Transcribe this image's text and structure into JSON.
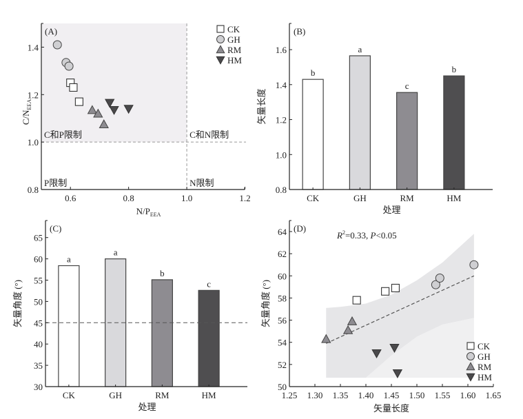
{
  "chart_data": [
    {
      "id": "A",
      "type": "scatter",
      "panel_label": "(A)",
      "xlabel": "N/P",
      "xlabel_sub": "EEA",
      "ylabel": "C/N",
      "ylabel_sub": "EEA",
      "xlim": [
        0.5,
        1.2
      ],
      "ylim": [
        0.8,
        1.5
      ],
      "xticks": [
        0.6,
        0.8,
        1.0,
        1.2
      ],
      "xtick_labels": [
        "0.6",
        "0.8",
        "1.0",
        "1.2"
      ],
      "yticks": [
        0.8,
        1.0,
        1.2,
        1.4
      ],
      "ytick_labels": [
        "0.8",
        "1.0",
        "1.2",
        "1.4"
      ],
      "reference_lines": {
        "x": 1.0,
        "y": 1.0
      },
      "shaded_region": {
        "x": [
          0.5,
          1.0
        ],
        "y": [
          1.0,
          1.5
        ]
      },
      "quadrant_labels": [
        {
          "text": "C和P限制",
          "position": "upper-left"
        },
        {
          "text": "C和N限制",
          "position": "upper-right"
        },
        {
          "text": "P限制",
          "position": "lower-left"
        },
        {
          "text": "N限制",
          "position": "lower-right"
        }
      ],
      "legend_position": "top-right",
      "series": [
        {
          "name": "CK",
          "marker": "square",
          "color": "#ffffff",
          "points": [
            [
              0.6,
              1.25
            ],
            [
              0.61,
              1.23
            ],
            [
              0.63,
              1.17
            ]
          ]
        },
        {
          "name": "GH",
          "marker": "circle",
          "color": "#cfcfd2",
          "points": [
            [
              0.555,
              1.41
            ],
            [
              0.585,
              1.335
            ],
            [
              0.595,
              1.32
            ]
          ]
        },
        {
          "name": "RM",
          "marker": "triangle-up",
          "color": "#8e8c91",
          "points": [
            [
              0.675,
              1.135
            ],
            [
              0.695,
              1.12
            ],
            [
              0.715,
              1.075
            ]
          ]
        },
        {
          "name": "HM",
          "marker": "triangle-down",
          "color": "#4a494b",
          "points": [
            [
              0.735,
              1.165
            ],
            [
              0.75,
              1.135
            ],
            [
              0.8,
              1.14
            ]
          ]
        }
      ]
    },
    {
      "id": "B",
      "type": "bar",
      "panel_label": "(B)",
      "xlabel": "处理",
      "ylabel": "矢量长度",
      "categories": [
        "CK",
        "GH",
        "RM",
        "HM"
      ],
      "values": [
        1.43,
        1.565,
        1.355,
        1.45
      ],
      "significance": [
        "b",
        "a",
        "c",
        "b"
      ],
      "colors": [
        "#ffffff",
        "#d9d9dc",
        "#8e8c91",
        "#4f4e50"
      ],
      "ylim": [
        0.8,
        1.75
      ],
      "yticks": [
        0.8,
        1.0,
        1.2,
        1.4,
        1.6
      ],
      "ytick_labels": [
        "0.8",
        "1.0",
        "1.2",
        "1.4",
        "1.6"
      ]
    },
    {
      "id": "C",
      "type": "bar",
      "panel_label": "(C)",
      "xlabel": "处理",
      "ylabel": "矢量角度 (°)",
      "categories": [
        "CK",
        "GH",
        "RM",
        "HM"
      ],
      "values": [
        58.4,
        60.0,
        55.1,
        52.6
      ],
      "significance": [
        "a",
        "a",
        "b",
        "c"
      ],
      "colors": [
        "#ffffff",
        "#d9d9dc",
        "#8e8c91",
        "#4f4e50"
      ],
      "ylim": [
        30,
        69
      ],
      "yticks": [
        30,
        35,
        40,
        45,
        50,
        55,
        60,
        65
      ],
      "ytick_labels": [
        "30",
        "35",
        "40",
        "45",
        "50",
        "55",
        "60",
        "65"
      ],
      "reference_line_y": 45
    },
    {
      "id": "D",
      "type": "scatter",
      "panel_label": "(D)",
      "xlabel": "矢量长度",
      "ylabel": "矢量角度 (°)",
      "annotation": {
        "r2_label": "R",
        "r2_sup": "2",
        "r2_value": "=0.33, ",
        "p_label": "P",
        "p_value": "<0.05"
      },
      "xlim": [
        1.25,
        1.65
      ],
      "ylim": [
        50,
        65
      ],
      "xticks": [
        1.25,
        1.3,
        1.35,
        1.4,
        1.45,
        1.5,
        1.55,
        1.6,
        1.65
      ],
      "xtick_labels": [
        "1.25",
        "1.30",
        "1.35",
        "1.40",
        "1.45",
        "1.50",
        "1.55",
        "1.60",
        "1.65"
      ],
      "yticks": [
        50,
        52,
        54,
        56,
        58,
        60,
        62,
        64
      ],
      "ytick_labels": [
        "50",
        "52",
        "54",
        "56",
        "58",
        "60",
        "62",
        "64"
      ],
      "legend_position": "bottom-right",
      "fit_line": {
        "x": [
          1.322,
          1.612
        ],
        "y": [
          53.9,
          60.0
        ]
      },
      "confidence_band": {
        "x": [
          1.322,
          1.35,
          1.4,
          1.45,
          1.5,
          1.55,
          1.612
        ],
        "upper": [
          57.1,
          57.2,
          57.5,
          58.3,
          59.6,
          61.2,
          63.8
        ],
        "lower": [
          50.8,
          50.8,
          50.8,
          52.8,
          54.5,
          55.6,
          56.2
        ]
      },
      "series": [
        {
          "name": "CK",
          "marker": "square",
          "color": "#ffffff",
          "points": [
            [
              1.382,
              57.8
            ],
            [
              1.438,
              58.6
            ],
            [
              1.458,
              58.9
            ]
          ]
        },
        {
          "name": "GH",
          "marker": "circle",
          "color": "#cfcfd2",
          "points": [
            [
              1.537,
              59.2
            ],
            [
              1.545,
              59.8
            ],
            [
              1.612,
              61.0
            ]
          ]
        },
        {
          "name": "RM",
          "marker": "triangle-up",
          "color": "#8e8c91",
          "points": [
            [
              1.322,
              54.3
            ],
            [
              1.365,
              55.1
            ],
            [
              1.373,
              55.9
            ]
          ]
        },
        {
          "name": "HM",
          "marker": "triangle-down",
          "color": "#4a494b",
          "points": [
            [
              1.421,
              53.0
            ],
            [
              1.456,
              53.5
            ],
            [
              1.462,
              51.2
            ]
          ]
        }
      ]
    }
  ]
}
